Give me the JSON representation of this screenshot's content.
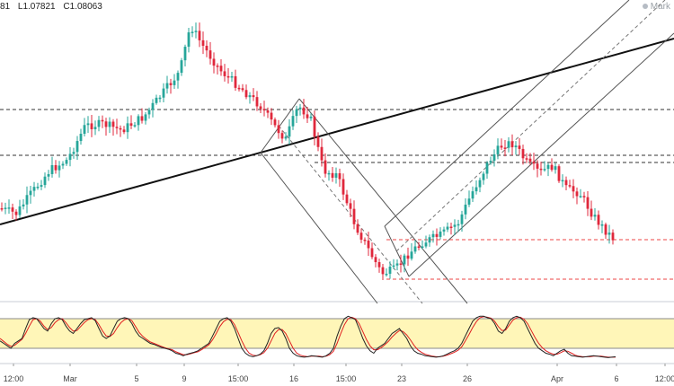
{
  "header": {
    "prefix": "81",
    "low": "L1.07821",
    "close": "C1.08063",
    "watermark": "Mark"
  },
  "chart_data": {
    "type": "candlestick",
    "x_tick_labels": [
      "12:00",
      "Mar",
      "5",
      "9",
      "15:00",
      "16",
      "15:00",
      "23",
      "26",
      "Apr",
      "6",
      "12:00"
    ],
    "colors": {
      "up": "#26a69a",
      "down": "#e0283c",
      "stoch_k": "#222222",
      "stoch_d": "#e02020",
      "band": "#fff6b8",
      "support": "#ee4444"
    },
    "oscillator_band": [
      20,
      80
    ],
    "oscillator": {
      "k": [
        35,
        30,
        25,
        20,
        30,
        35,
        40,
        60,
        78,
        82,
        80,
        70,
        60,
        55,
        70,
        80,
        82,
        78,
        65,
        55,
        50,
        60,
        70,
        78,
        80,
        82,
        76,
        60,
        45,
        40,
        45,
        60,
        75,
        80,
        82,
        80,
        70,
        55,
        45,
        40,
        35,
        30,
        28,
        25,
        22,
        20,
        18,
        15,
        10,
        8,
        5,
        8,
        10,
        12,
        15,
        20,
        25,
        30,
        45,
        60,
        75,
        80,
        82,
        75,
        60,
        40,
        20,
        10,
        5,
        3,
        5,
        8,
        15,
        30,
        50,
        60,
        62,
        55,
        40,
        20,
        10,
        5,
        3,
        2,
        3,
        5,
        4,
        3,
        2,
        5,
        10,
        20,
        45,
        65,
        80,
        85,
        82,
        78,
        60,
        40,
        25,
        15,
        10,
        20,
        25,
        30,
        40,
        50,
        55,
        60,
        50,
        40,
        25,
        15,
        10,
        8,
        5,
        4,
        3,
        2,
        3,
        5,
        8,
        12,
        15,
        20,
        30,
        45,
        60,
        75,
        82,
        85,
        85,
        82,
        80,
        70,
        55,
        50,
        60,
        75,
        82,
        85,
        82,
        75,
        60,
        45,
        30,
        20,
        15,
        10,
        8,
        5,
        10,
        15,
        18,
        10,
        5,
        4,
        3,
        2,
        3,
        4,
        5,
        4,
        3,
        2,
        1,
        2,
        3
      ],
      "d": [
        40,
        34,
        28,
        24,
        26,
        32,
        38,
        50,
        65,
        78,
        80,
        75,
        65,
        58,
        62,
        72,
        78,
        80,
        72,
        62,
        55,
        56,
        64,
        72,
        78,
        80,
        78,
        68,
        55,
        45,
        44,
        50,
        62,
        72,
        78,
        80,
        76,
        64,
        52,
        44,
        38,
        33,
        30,
        27,
        24,
        21,
        19,
        17,
        13,
        10,
        7,
        7,
        9,
        11,
        13,
        17,
        22,
        27,
        37,
        50,
        64,
        74,
        79,
        78,
        68,
        52,
        35,
        20,
        10,
        6,
        5,
        7,
        11,
        20,
        35,
        50,
        58,
        58,
        50,
        35,
        20,
        10,
        6,
        4,
        3,
        4,
        4,
        4,
        3,
        4,
        7,
        14,
        30,
        50,
        68,
        80,
        83,
        80,
        70,
        54,
        38,
        25,
        17,
        17,
        21,
        27,
        34,
        43,
        50,
        56,
        54,
        47,
        37,
        26,
        17,
        12,
        8,
        6,
        4,
        3,
        3,
        4,
        6,
        9,
        12,
        16,
        23,
        35,
        48,
        62,
        74,
        82,
        84,
        83,
        81,
        75,
        64,
        56,
        57,
        67,
        77,
        82,
        83,
        79,
        70,
        56,
        42,
        30,
        21,
        15,
        11,
        8,
        8,
        11,
        15,
        14,
        10,
        6,
        4,
        3,
        3,
        3,
        4,
        4,
        4,
        3,
        2,
        2,
        2
      ]
    }
  }
}
